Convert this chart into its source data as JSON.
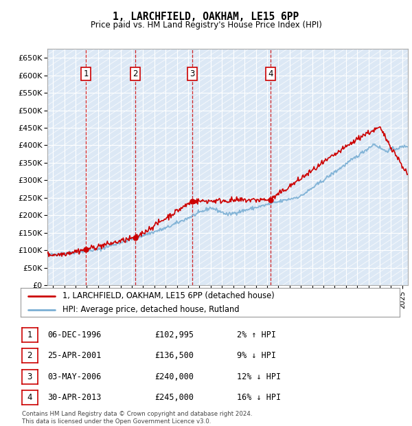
{
  "title": "1, LARCHFIELD, OAKHAM, LE15 6PP",
  "subtitle": "Price paid vs. HM Land Registry's House Price Index (HPI)",
  "ylim": [
    0,
    675000
  ],
  "yticks": [
    0,
    50000,
    100000,
    150000,
    200000,
    250000,
    300000,
    350000,
    400000,
    450000,
    500000,
    550000,
    600000,
    650000
  ],
  "ytick_labels": [
    "£0",
    "£50K",
    "£100K",
    "£150K",
    "£200K",
    "£250K",
    "£300K",
    "£350K",
    "£400K",
    "£450K",
    "£500K",
    "£550K",
    "£600K",
    "£650K"
  ],
  "sales": [
    {
      "label": "1",
      "date_num": 1996.93,
      "price": 102995
    },
    {
      "label": "2",
      "date_num": 2001.32,
      "price": 136500
    },
    {
      "label": "3",
      "date_num": 2006.34,
      "price": 240000
    },
    {
      "label": "4",
      "date_num": 2013.33,
      "price": 245000
    }
  ],
  "sale_marker_color": "#cc0000",
  "hpi_line_color": "#7aafd4",
  "price_line_color": "#cc0000",
  "box_color": "#cc0000",
  "bg_color": "#dce8f5",
  "legend_line1": "1, LARCHFIELD, OAKHAM, LE15 6PP (detached house)",
  "legend_line2": "HPI: Average price, detached house, Rutland",
  "table_rows": [
    {
      "num": "1",
      "date": "06-DEC-1996",
      "price": "£102,995",
      "hpi": "2% ↑ HPI"
    },
    {
      "num": "2",
      "date": "25-APR-2001",
      "price": "£136,500",
      "hpi": "9% ↓ HPI"
    },
    {
      "num": "3",
      "date": "03-MAY-2006",
      "price": "£240,000",
      "hpi": "12% ↓ HPI"
    },
    {
      "num": "4",
      "date": "30-APR-2013",
      "price": "£245,000",
      "hpi": "16% ↓ HPI"
    }
  ],
  "footer": "Contains HM Land Registry data © Crown copyright and database right 2024.\nThis data is licensed under the Open Government Licence v3.0.",
  "xlim_start": 1993.5,
  "xlim_end": 2025.5
}
